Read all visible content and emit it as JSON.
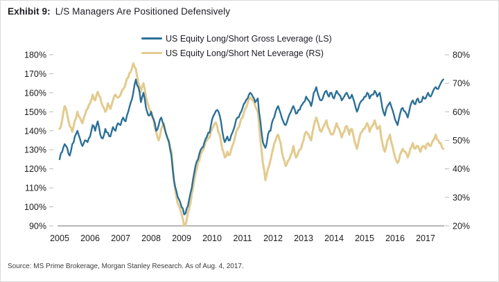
{
  "title": {
    "prefix": "Exhibit 9:",
    "text": "L/S Managers Are Positioned Defensively"
  },
  "legend": [
    {
      "label": "US Equity Long/Short Gross Leverage (LS)",
      "color": "#2a6f97"
    },
    {
      "label": "US Equity Long/Short Net Leverage (RS)",
      "color": "#e3cb8f"
    }
  ],
  "source": "Source: MS Prime Brokerage, Morgan Stanley Research. As of Aug. 4, 2017.",
  "chart_data": {
    "type": "line",
    "title": "L/S Managers Are Positioned Defensively",
    "x_start_year": 2005,
    "points_per_year": 12,
    "x_tick_labels": [
      "2005",
      "2006",
      "2007",
      "2008",
      "2009",
      "2010",
      "2011",
      "2012",
      "2013",
      "2014",
      "2015",
      "2016",
      "2017"
    ],
    "left_axis": {
      "min": 90,
      "max": 180,
      "step": 10,
      "ticks": [
        "180%",
        "170%",
        "160%",
        "150%",
        "140%",
        "130%",
        "120%",
        "110%",
        "100%",
        "90%"
      ]
    },
    "right_axis": {
      "min": 20,
      "max": 80,
      "step": 10,
      "ticks": [
        "80%",
        "70%",
        "60%",
        "50%",
        "40%",
        "30%",
        "20%"
      ]
    },
    "grid": false,
    "legend_position": "top-center",
    "series": [
      {
        "name": "US Equity Long/Short Net Leverage (RS)",
        "axis": "right",
        "color": "#e3cb8f",
        "width": 3.1,
        "values": [
          54,
          57,
          62,
          59,
          55,
          53,
          57,
          60,
          58,
          56,
          59,
          61,
          63,
          66,
          64,
          67,
          65,
          62,
          60,
          63,
          61,
          64,
          66,
          65,
          66,
          68,
          70,
          72,
          74,
          77,
          75,
          70,
          67,
          70,
          65,
          62,
          60,
          57,
          53,
          50,
          54,
          56,
          52,
          50,
          46,
          36,
          30,
          27,
          24,
          20,
          22,
          26,
          31,
          36,
          40,
          43,
          46,
          48,
          50,
          51,
          54,
          56,
          55,
          52,
          47,
          44,
          46,
          45,
          48,
          51,
          54,
          56,
          58,
          61,
          63,
          65,
          64,
          62,
          60,
          50,
          42,
          36,
          40,
          43,
          47,
          50,
          52,
          49,
          44,
          41,
          43,
          45,
          48,
          44,
          46,
          47,
          50,
          53,
          52,
          50,
          55,
          58,
          55,
          53,
          55,
          57,
          54,
          52,
          53,
          56,
          54,
          51,
          53,
          55,
          52,
          54,
          50,
          47,
          51,
          53,
          54,
          56,
          53,
          55,
          57,
          54,
          55,
          49,
          46,
          50,
          52,
          48,
          44,
          42,
          45,
          47,
          46,
          44,
          47,
          49,
          47,
          48,
          46,
          48,
          47,
          49,
          48,
          50,
          52,
          50,
          49,
          47
        ]
      },
      {
        "name": "US Equity Long/Short Gross Leverage (LS)",
        "axis": "left",
        "color": "#2a6f97",
        "width": 2.4,
        "values": [
          125,
          129,
          133,
          131,
          127,
          133,
          137,
          140,
          136,
          132,
          135,
          134,
          137,
          143,
          140,
          145,
          138,
          136,
          141,
          139,
          137,
          142,
          140,
          144,
          143,
          147,
          145,
          150,
          155,
          160,
          167,
          163,
          155,
          160,
          152,
          148,
          150,
          146,
          140,
          143,
          147,
          143,
          138,
          134,
          127,
          114,
          108,
          104,
          100,
          96,
          99,
          104,
          110,
          118,
          124,
          128,
          131,
          134,
          137,
          139,
          146,
          149,
          151,
          148,
          140,
          134,
          137,
          135,
          139,
          143,
          147,
          149,
          152,
          155,
          157,
          160,
          158,
          155,
          157,
          145,
          134,
          131,
          138,
          140,
          146,
          150,
          153,
          149,
          145,
          143,
          147,
          150,
          153,
          149,
          151,
          153,
          155,
          158,
          156,
          153,
          160,
          163,
          158,
          156,
          159,
          161,
          158,
          160,
          157,
          161,
          159,
          156,
          158,
          160,
          157,
          159,
          155,
          150,
          154,
          156,
          158,
          160,
          157,
          159,
          161,
          158,
          160,
          152,
          148,
          153,
          155,
          151,
          146,
          143,
          149,
          152,
          150,
          147,
          153,
          156,
          154,
          157,
          155,
          158,
          157,
          160,
          158,
          161,
          163,
          162,
          165,
          167
        ]
      }
    ]
  }
}
